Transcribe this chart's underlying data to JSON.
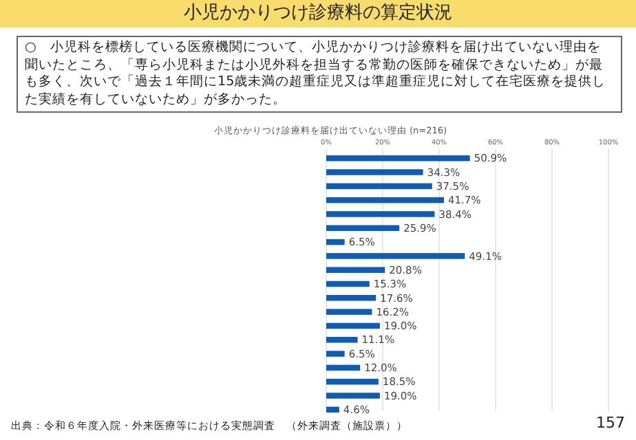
{
  "chart_data": {
    "type": "bar",
    "orientation": "horizontal",
    "title": "小児かかりつけ診療料の算定状況",
    "subtitle": "小児かかりつけ診療料を届け出ていない理由 (n=216)",
    "annotations": [
      "○　小児科を標榜している医療機関について、小児かかりつけ診療料を届け出ていない理由を聞いたところ、「専ら小児科または小児外科を担当する常勤の医師を確保できないため」が最も多く、次いで「過去１年間に15歳未満の超重症児又は準超重症児に対して在宅医療を提供した実績を有していないため」が多かった。",
      "出典：令和６年度入院・外来医療等における実態調査　（外来調査（施設票））",
      "157"
    ],
    "categories": [
      null,
      null,
      null,
      null,
      null,
      null,
      null,
      null,
      null,
      null,
      null,
      null,
      null,
      null,
      null,
      null,
      null,
      null,
      null
    ],
    "values": [
      50.9,
      34.3,
      37.5,
      41.7,
      38.4,
      25.9,
      6.5,
      49.1,
      20.8,
      15.3,
      17.6,
      16.2,
      19.0,
      11.1,
      6.5,
      12.0,
      18.5,
      19.0,
      4.6
    ],
    "value_labels": [
      "50.9%",
      "34.3%",
      "37.5%",
      "41.7%",
      "38.4%",
      "25.9%",
      "6.5%",
      "49.1%",
      "20.8%",
      "15.3%",
      "17.6%",
      "16.2%",
      "19.0%",
      "11.1%",
      "6.5%",
      "12.0%",
      "18.5%",
      "19.0%",
      "4.6%"
    ],
    "color": "#0f5cb5",
    "xlim": [
      0,
      100
    ],
    "xticks": [
      {
        "value": 0,
        "label": "0%"
      },
      {
        "value": 20,
        "label": "20%"
      },
      {
        "value": 40,
        "label": "40%"
      },
      {
        "value": 60,
        "label": "60%"
      },
      {
        "value": 80,
        "label": "80%"
      },
      {
        "value": 100,
        "label": "100%"
      }
    ],
    "grid": "x"
  }
}
